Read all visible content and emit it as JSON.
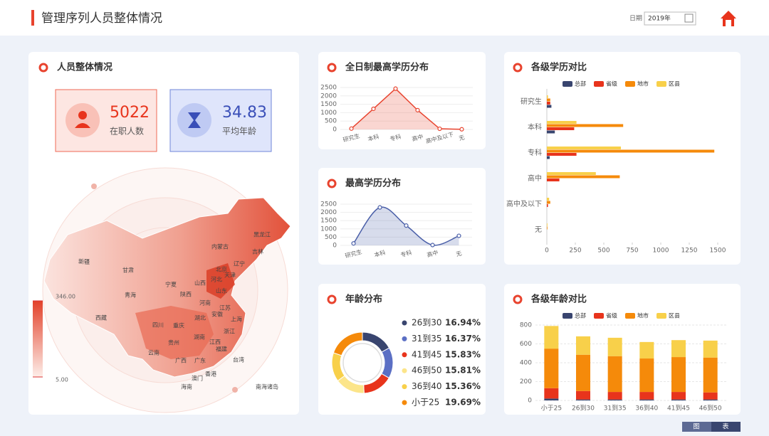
{
  "header": {
    "title": "管理序列人员整体情况",
    "date_label": "日期",
    "date_value": "2019年"
  },
  "overview": {
    "title": "人员整体情况",
    "stats": [
      {
        "value": 5022,
        "label": "在职人数"
      },
      {
        "value": 34.83,
        "label": "平均年龄"
      }
    ]
  },
  "map": {
    "range": [
      {
        "value": 5,
        "label": "5.00"
      },
      {
        "value": 346,
        "label": "346.00"
      }
    ],
    "labels": [
      "新疆",
      "西藏",
      "青海",
      "甘肃",
      "内蒙古",
      "黑龙江",
      "吉林",
      "辽宁",
      "北京",
      "天津",
      "河北",
      "山西",
      "陕西",
      "宁夏",
      "山东",
      "河南",
      "江苏",
      "安徽",
      "上海",
      "湖北",
      "四川",
      "重庆",
      "湖南",
      "浙江",
      "江西",
      "贵州",
      "云南",
      "福建",
      "广西",
      "广东",
      "台湾",
      "香港",
      "澳门",
      "海南",
      "南海诸岛"
    ]
  },
  "view_toggle": [
    "图",
    "表"
  ],
  "chart_data": [
    {
      "type": "line",
      "title": "全日制最高学历分布",
      "color": "#e8432e",
      "area": true,
      "smooth": false,
      "categories": [
        "研究生",
        "本科",
        "专科",
        "高中",
        "高中及以下",
        "无"
      ],
      "values": [
        50,
        1230,
        2430,
        1150,
        40,
        10
      ],
      "ylim": [
        0,
        2500
      ],
      "yticks": [
        0,
        500,
        1000,
        1500,
        2000,
        2500
      ],
      "grid": true
    },
    {
      "type": "line",
      "title": "最高学历分布",
      "color": "#4a5fa8",
      "area": true,
      "smooth": true,
      "categories": [
        "研究生",
        "本科",
        "专科",
        "高中",
        "无"
      ],
      "values": [
        120,
        2300,
        1200,
        20,
        580
      ],
      "ylim": [
        0,
        2500
      ],
      "yticks": [
        0,
        500,
        1000,
        1500,
        2000,
        2500
      ],
      "grid": true
    },
    {
      "type": "bar",
      "title": "各级学历对比",
      "orientation": "horizontal",
      "stacked": false,
      "grid": false,
      "categories": [
        "研究生",
        "本科",
        "专科",
        "高中",
        "高中及以下",
        "无"
      ],
      "series": [
        {
          "name": "总部",
          "color": "#39456f",
          "values": [
            40,
            70,
            25,
            0,
            0,
            0
          ]
        },
        {
          "name": "省级",
          "color": "#e8341c",
          "values": [
            30,
            240,
            260,
            110,
            10,
            0
          ]
        },
        {
          "name": "地市",
          "color": "#f58a0a",
          "values": [
            30,
            670,
            1470,
            640,
            30,
            5
          ]
        },
        {
          "name": "区县",
          "color": "#f8d04a",
          "values": [
            10,
            260,
            650,
            430,
            20,
            5
          ]
        }
      ],
      "xlim": [
        0,
        1500
      ],
      "xticks": [
        0,
        250,
        500,
        750,
        1000,
        1250,
        1500
      ]
    },
    {
      "type": "pie",
      "title": "年龄分布",
      "donut": true,
      "categories": [
        "26到30",
        "31到35",
        "41到45",
        "46到50",
        "36到40",
        "小于25"
      ],
      "values": [
        16.94,
        16.37,
        15.83,
        15.81,
        15.36,
        19.69
      ],
      "value_labels": [
        "16.94%",
        "16.37%",
        "15.83%",
        "15.81%",
        "15.36%",
        "19.69%"
      ],
      "colors": [
        "#39456f",
        "#5b6fc4",
        "#e8341c",
        "#fce58a",
        "#f8d04a",
        "#f58a0a"
      ]
    },
    {
      "type": "bar",
      "title": "各级年龄对比",
      "orientation": "vertical",
      "stacked": true,
      "grid": true,
      "categories": [
        "小于25",
        "26到30",
        "31到35",
        "36到40",
        "41到45",
        "46到50"
      ],
      "series": [
        {
          "name": "总部",
          "color": "#39456f",
          "values": [
            20,
            10,
            10,
            10,
            10,
            10
          ]
        },
        {
          "name": "省级",
          "color": "#e8341c",
          "values": [
            110,
            90,
            80,
            80,
            80,
            75
          ]
        },
        {
          "name": "地市",
          "color": "#f58a0a",
          "values": [
            420,
            385,
            380,
            355,
            370,
            370
          ]
        },
        {
          "name": "区县",
          "color": "#f8d04a",
          "values": [
            240,
            195,
            195,
            175,
            180,
            180
          ]
        }
      ],
      "ylim": [
        0,
        800
      ],
      "yticks": [
        0,
        200,
        400,
        600,
        800
      ]
    }
  ]
}
